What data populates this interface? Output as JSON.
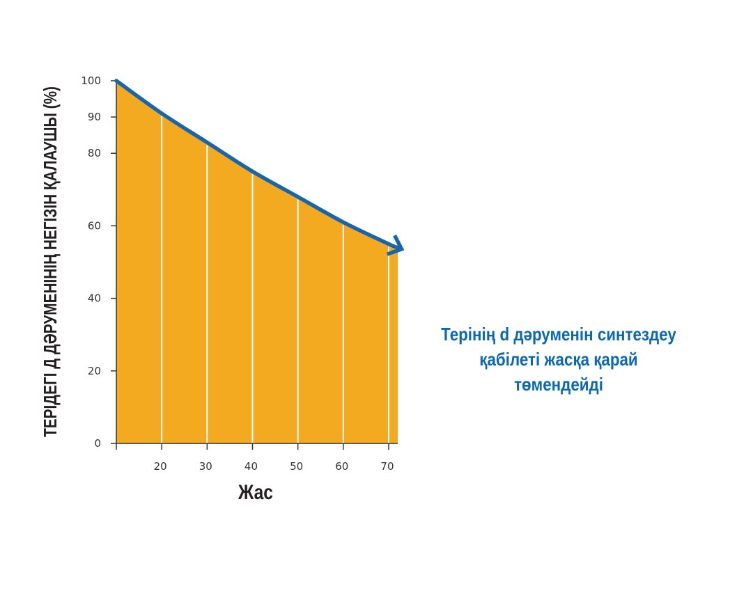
{
  "colors": {
    "fill": "#f3a920",
    "curve": "#1766ad",
    "annotation": "#0b68b0",
    "axis": "#333333",
    "gridline": "#ffffff"
  },
  "chart_data": {
    "type": "area",
    "title": "",
    "xlabel": "Жас",
    "ylabel": "ТЕРІДЕГІ Д ДӘРУМЕНІНІҢ НЕГІЗІН ҚАЛАУШЫ (%)",
    "x_ticks": [
      "20",
      "30",
      "40",
      "50",
      "60",
      "70"
    ],
    "y_ticks": [
      "0",
      "20",
      "40",
      "60",
      "80",
      "90",
      "100"
    ],
    "x": [
      10,
      20,
      30,
      40,
      50,
      60,
      70,
      72
    ],
    "y": [
      100,
      91,
      83,
      75,
      68,
      61,
      55,
      54
    ],
    "xlim": [
      10,
      72
    ],
    "ylim": [
      0,
      100
    ],
    "grid": "vertical lines at x ticks",
    "legend": "none",
    "annotation": {
      "line1": "Терінің d дәруменін синтездеу",
      "line2": "қабілеті жасқа қарай төмендейді"
    }
  }
}
